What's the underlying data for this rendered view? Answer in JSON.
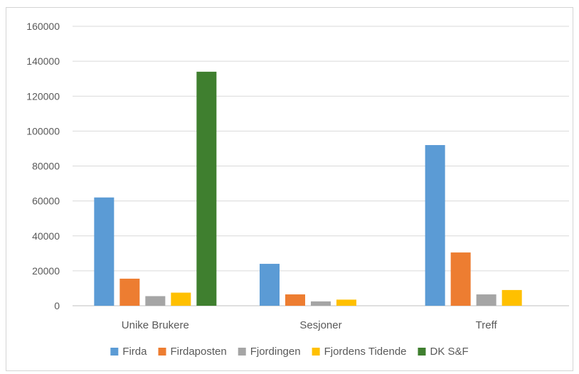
{
  "chart_data": {
    "type": "bar",
    "categories": [
      "Unike Brukere",
      "Sesjoner",
      "Treff"
    ],
    "series": [
      {
        "name": "Firda",
        "color": "#5b9bd5",
        "values": [
          62000,
          24000,
          92000
        ]
      },
      {
        "name": "Firdaposten",
        "color": "#ed7d31",
        "values": [
          15500,
          6500,
          30500
        ]
      },
      {
        "name": "Fjordingen",
        "color": "#a5a5a5",
        "values": [
          5500,
          2500,
          6500
        ]
      },
      {
        "name": "Fjordens Tidende",
        "color": "#ffc000",
        "values": [
          7500,
          3500,
          9000
        ]
      },
      {
        "name": "DK S&F",
        "color": "#3f7f2f",
        "values": [
          134000,
          null,
          null
        ]
      }
    ],
    "ylim": [
      0,
      160000
    ],
    "yticks": [
      "0",
      "20000",
      "40000",
      "60000",
      "80000",
      "100000",
      "120000",
      "140000",
      "160000"
    ],
    "grid": true,
    "legend": "bottom"
  }
}
